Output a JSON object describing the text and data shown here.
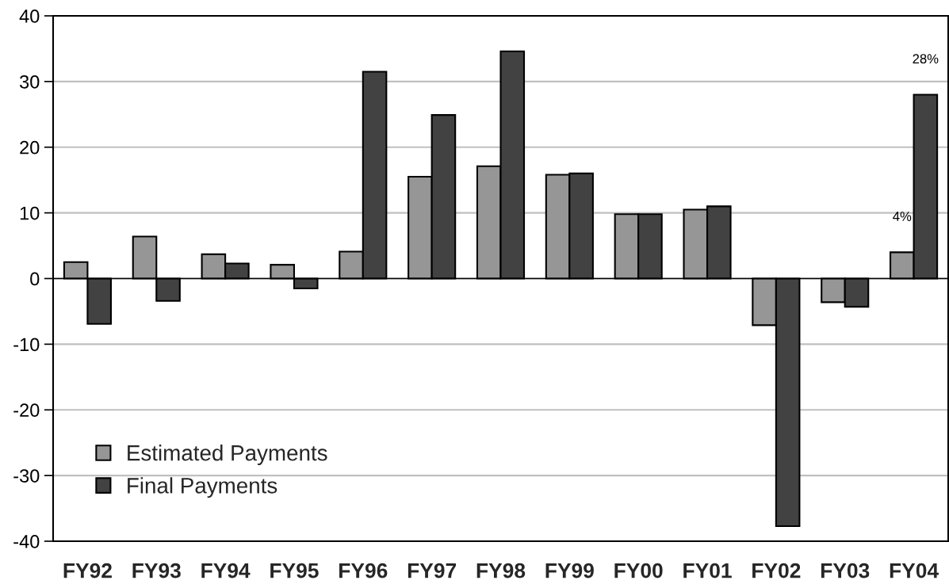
{
  "chart_data": {
    "type": "bar",
    "categories": [
      "FY92",
      "FY93",
      "FY94",
      "FY95",
      "FY96",
      "FY97",
      "FY98",
      "FY99",
      "FY00",
      "FY01",
      "FY02",
      "FY03",
      "FY04"
    ],
    "series": [
      {
        "name": "Estimated Payments",
        "color": "#969696",
        "values": [
          2.5,
          6.4,
          3.7,
          2.1,
          4.1,
          15.5,
          17.1,
          15.8,
          9.8,
          10.5,
          -7.1,
          -3.6,
          4
        ],
        "value_labels": [
          null,
          null,
          null,
          null,
          null,
          null,
          null,
          null,
          null,
          null,
          null,
          null,
          "4%"
        ]
      },
      {
        "name": "Final Payments",
        "color": "#424242",
        "values": [
          -6.9,
          -3.4,
          2.3,
          -1.5,
          31.5,
          24.9,
          34.6,
          16.0,
          9.8,
          11.0,
          -37.7,
          -4.3,
          28
        ],
        "value_labels": [
          null,
          null,
          null,
          null,
          null,
          null,
          null,
          null,
          null,
          null,
          null,
          null,
          "28%"
        ]
      }
    ],
    "ylim": [
      -40,
      40
    ],
    "yticks": [
      -40,
      -30,
      -20,
      -10,
      0,
      10,
      20,
      30,
      40
    ],
    "grid": "y",
    "legend": "bottom left"
  }
}
